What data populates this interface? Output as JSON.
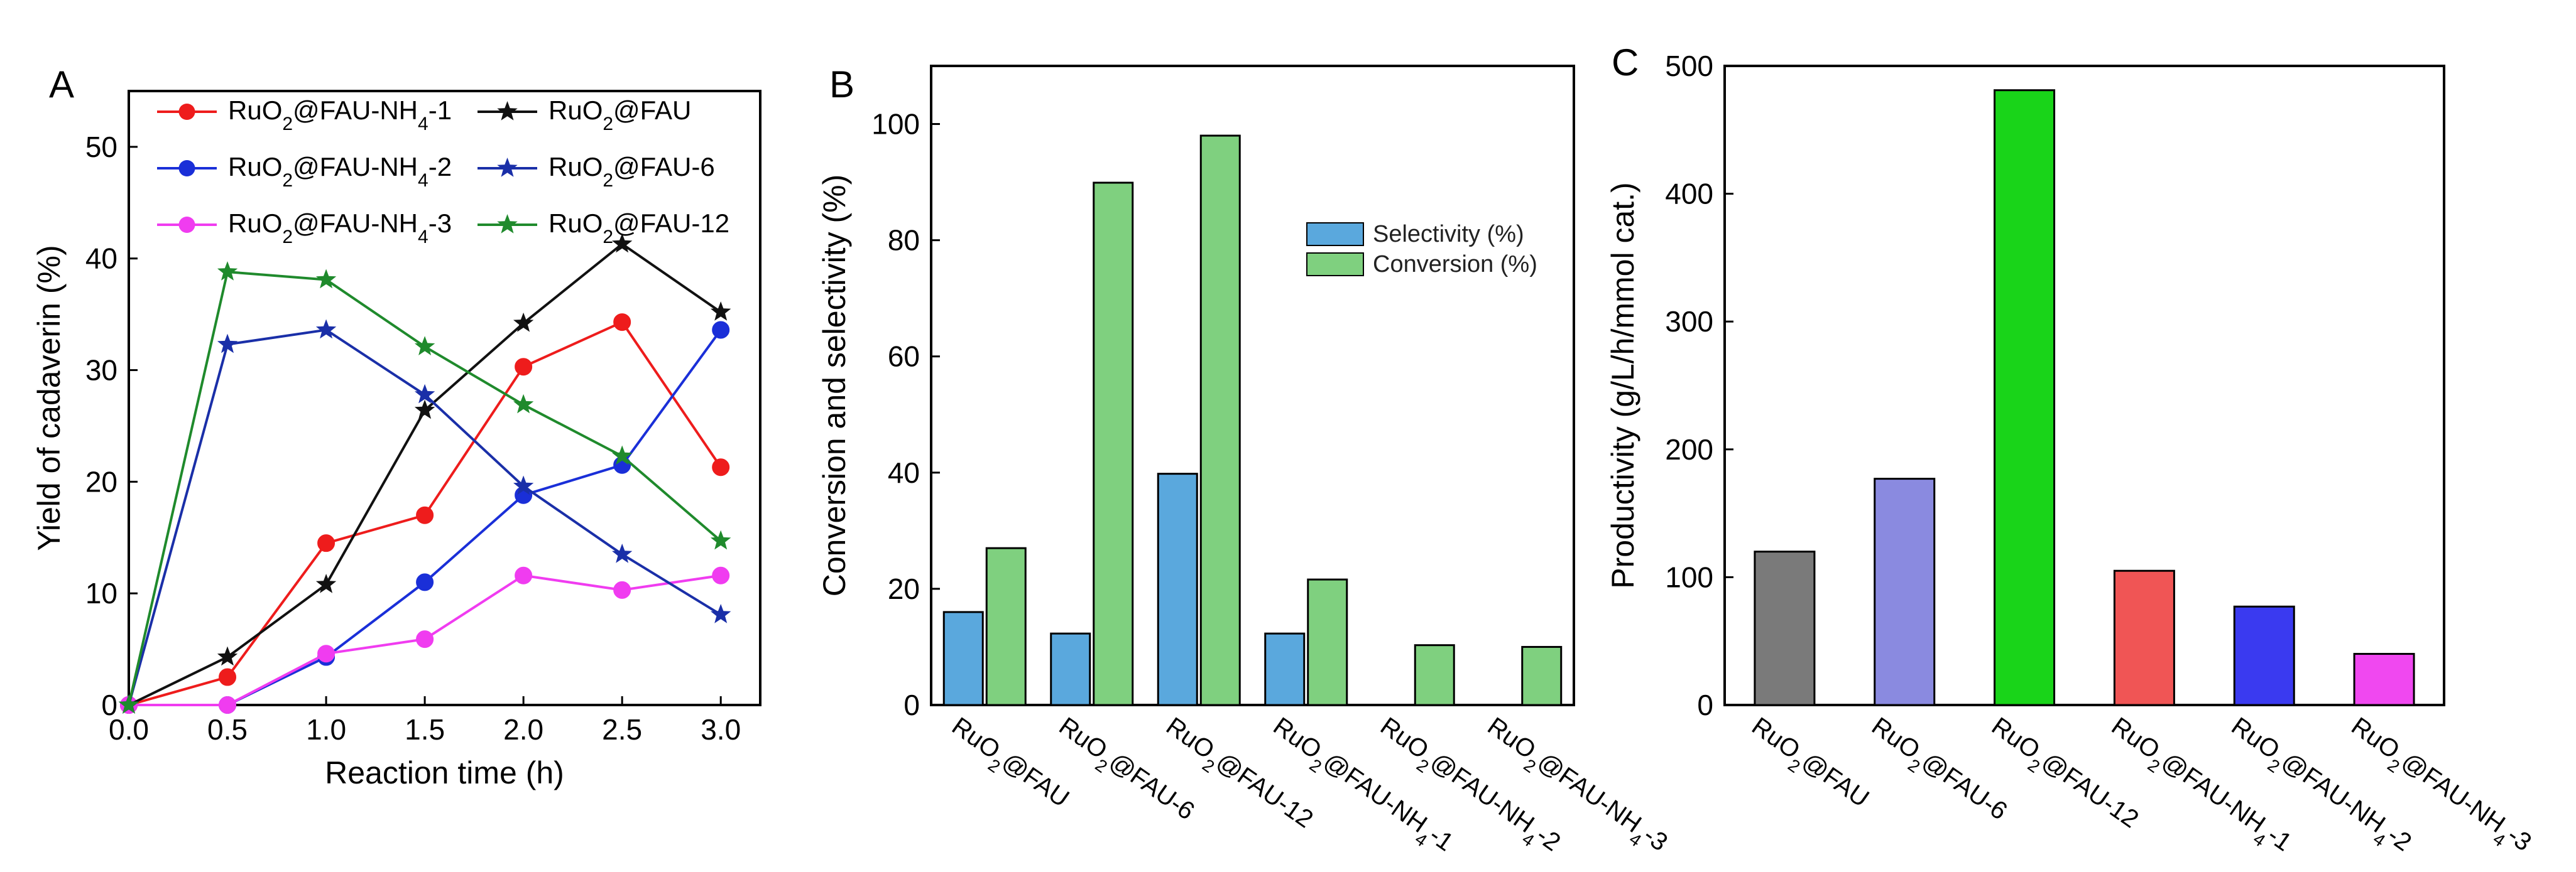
{
  "chart_data": [
    {
      "panel": "A",
      "type": "line",
      "xlabel": "Reaction time (h)",
      "ylabel": "Yield of cadaverin   (%)",
      "xlim": [
        0,
        3.2
      ],
      "ylim": [
        0,
        55
      ],
      "xticks": [
        "0.0",
        "0.5",
        "1.0",
        "1.5",
        "2.0",
        "2.5",
        "3.0"
      ],
      "yticks": [
        "0",
        "10",
        "20",
        "30",
        "40",
        "50"
      ],
      "x": [
        0,
        0.5,
        1.0,
        1.5,
        2.0,
        2.5,
        3.0
      ],
      "series": [
        {
          "name": "RuO2@FAU-NH4-1",
          "base": "RuO",
          "sub1": "2",
          "mid": "@FAU-NH",
          "sub2": "4",
          "tail": "-1",
          "color": "#ee1c1c",
          "marker": "circle",
          "values": [
            0,
            2.5,
            14.5,
            17,
            30.3,
            34.3,
            21.3
          ]
        },
        {
          "name": "RuO2@FAU-NH4-2",
          "base": "RuO",
          "sub1": "2",
          "mid": "@FAU-NH",
          "sub2": "4",
          "tail": "-2",
          "color": "#1a2fd8",
          "marker": "circle",
          "values": [
            0,
            0,
            4.3,
            11,
            18.8,
            21.5,
            33.6
          ]
        },
        {
          "name": "RuO2@FAU-NH4-3",
          "base": "RuO",
          "sub1": "2",
          "mid": "@FAU-NH",
          "sub2": "4",
          "tail": "-3",
          "color": "#f03cf0",
          "marker": "circle",
          "values": [
            0,
            0,
            4.6,
            5.9,
            11.6,
            10.3,
            11.6
          ]
        },
        {
          "name": "RuO2@FAU",
          "base": "RuO",
          "sub1": "2",
          "mid": "@FAU",
          "sub2": "",
          "tail": "",
          "color": "#111111",
          "marker": "star",
          "values": [
            0,
            4.3,
            10.8,
            26.4,
            34.2,
            41.3,
            35.2
          ]
        },
        {
          "name": "RuO2@FAU-6",
          "base": "RuO",
          "sub1": "2",
          "mid": "@FAU-6",
          "sub2": "",
          "tail": "",
          "color": "#1a2fa8",
          "marker": "star",
          "values": [
            0,
            32.3,
            33.6,
            27.8,
            19.6,
            13.5,
            8.1
          ]
        },
        {
          "name": "RuO2@FAU-12",
          "base": "RuO",
          "sub1": "2",
          "mid": "@FAU-12",
          "sub2": "",
          "tail": "",
          "color": "#1f8a2c",
          "marker": "star",
          "values": [
            0,
            38.8,
            38.1,
            32.1,
            26.9,
            22.3,
            14.7
          ]
        }
      ]
    },
    {
      "panel": "B",
      "type": "bar",
      "xlabel": "",
      "ylabel": "Conversion and selectivity (%)",
      "ylim": [
        0,
        110
      ],
      "yticks": [
        "0",
        "20",
        "40",
        "60",
        "80",
        "100"
      ],
      "categories": [
        {
          "base": "RuO",
          "sub1": "2",
          "mid": "@FAU",
          "sub2": "",
          "tail": ""
        },
        {
          "base": "RuO",
          "sub1": "2",
          "mid": "@FAU-6",
          "sub2": "",
          "tail": ""
        },
        {
          "base": "RuO",
          "sub1": "2",
          "mid": "@FAU-12",
          "sub2": "",
          "tail": ""
        },
        {
          "base": "RuO",
          "sub1": "2",
          "mid": "@FAU-NH",
          "sub2": "4",
          "tail": "-1"
        },
        {
          "base": "RuO",
          "sub1": "2",
          "mid": "@FAU-NH",
          "sub2": "4",
          "tail": "-2"
        },
        {
          "base": "RuO",
          "sub1": "2",
          "mid": "@FAU-NH",
          "sub2": "4",
          "tail": "-3"
        }
      ],
      "series": [
        {
          "name": "Selectivity (%)",
          "color": "#5aa8dd",
          "values": [
            16,
            12.3,
            39.8,
            12.3,
            0,
            0
          ]
        },
        {
          "name": "Conversion (%)",
          "color": "#7fd07f",
          "values": [
            27,
            89.9,
            98,
            21.6,
            10.3,
            10
          ]
        }
      ]
    },
    {
      "panel": "C",
      "type": "bar",
      "xlabel": "",
      "ylabel": "Productivity (g/L/h/mmol cat.)",
      "ylim": [
        0,
        500
      ],
      "yticks": [
        "0",
        "100",
        "200",
        "300",
        "400",
        "500"
      ],
      "categories": [
        {
          "base": "RuO",
          "sub1": "2",
          "mid": "@FAU",
          "sub2": "",
          "tail": ""
        },
        {
          "base": "RuO",
          "sub1": "2",
          "mid": "@FAU-6",
          "sub2": "",
          "tail": ""
        },
        {
          "base": "RuO",
          "sub1": "2",
          "mid": "@FAU-12",
          "sub2": "",
          "tail": ""
        },
        {
          "base": "RuO",
          "sub1": "2",
          "mid": "@FAU-NH",
          "sub2": "4",
          "tail": "-1"
        },
        {
          "base": "RuO",
          "sub1": "2",
          "mid": "@FAU-NH",
          "sub2": "4",
          "tail": "-2"
        },
        {
          "base": "RuO",
          "sub1": "2",
          "mid": "@FAU-NH",
          "sub2": "4",
          "tail": "-3"
        }
      ],
      "values": [
        120,
        177,
        481,
        105,
        77,
        40
      ],
      "colors": [
        "#7a7a7a",
        "#8a8ae0",
        "#19d419",
        "#f05555",
        "#3a3af0",
        "#f048f0"
      ]
    }
  ]
}
